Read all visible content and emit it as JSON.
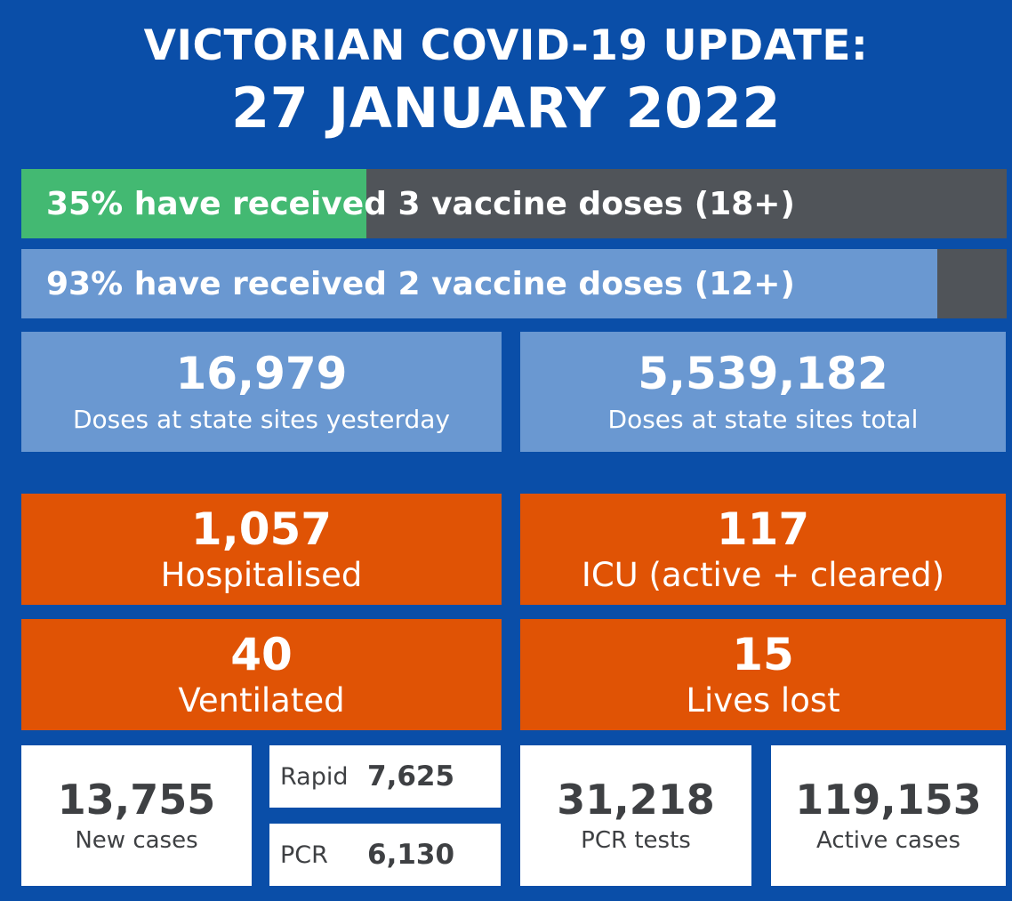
{
  "header": {
    "line1": "VICTORIAN COVID-19 UPDATE:",
    "line2": "27 JANUARY 2022"
  },
  "vaccination_bars": [
    {
      "text": "35% have received 3 vaccine doses (18+)",
      "fill_percent": 35
    },
    {
      "text": "93% have received 2 vaccine doses (12+)",
      "fill_percent": 93
    }
  ],
  "doses": {
    "yesterday": {
      "value": "16,979",
      "label": "Doses at state sites yesterday"
    },
    "total": {
      "value": "5,539,182",
      "label": "Doses at state sites total"
    }
  },
  "hospital": {
    "hospitalised": {
      "value": "1,057",
      "label": "Hospitalised"
    },
    "icu": {
      "value": "117",
      "label": "ICU (active + cleared)"
    },
    "ventilated": {
      "value": "40",
      "label": "Ventilated"
    },
    "lives_lost": {
      "value": "15",
      "label": "Lives lost"
    }
  },
  "cases": {
    "new_cases": {
      "value": "13,755",
      "label": "New cases"
    },
    "rapid": {
      "label": "Rapid",
      "value": "7,625"
    },
    "pcr": {
      "label": "PCR",
      "value": "6,130"
    },
    "pcr_tests": {
      "value": "31,218",
      "label": "PCR tests"
    },
    "active_cases": {
      "value": "119,153",
      "label": "Active cases"
    }
  },
  "colors": {
    "background": "#0a4ea8",
    "green": "#43b972",
    "light_blue": "#6a98d1",
    "grey": "#505459",
    "orange": "#e05305",
    "white": "#ffffff",
    "dark_text": "#3e4043"
  }
}
